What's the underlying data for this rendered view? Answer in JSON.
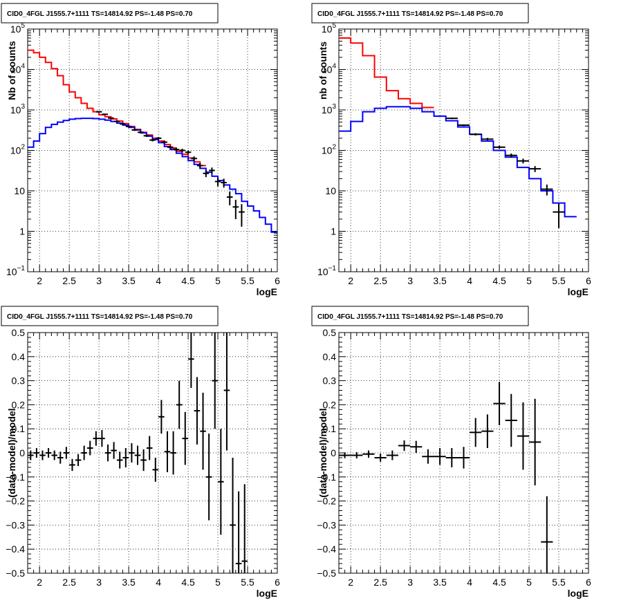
{
  "chart_data": [
    {
      "type": "line",
      "title": "CID0_4FGL J1555.7+1111 TS=14814.92 PS=-1.48 PS=0.70",
      "xlabel": "logE",
      "ylabel": "Nb of counts",
      "xlim": [
        1.8,
        6.0
      ],
      "ylim": [
        0.1,
        100000
      ],
      "yscale": "log",
      "grid": true,
      "xticks": [
        "2",
        "2.5",
        "3",
        "3.5",
        "4",
        "4.5",
        "5",
        "5.5",
        "6"
      ],
      "yticks": [
        {
          "v": 0.1,
          "label": "10",
          "sup": "−1"
        },
        {
          "v": 1,
          "label": "1",
          "sup": ""
        },
        {
          "v": 10,
          "label": "10",
          "sup": ""
        },
        {
          "v": 100,
          "label": "10",
          "sup": "2"
        },
        {
          "v": 1000,
          "label": "10",
          "sup": "3"
        },
        {
          "v": 10000,
          "label": "10",
          "sup": "4"
        },
        {
          "v": 100000,
          "label": "10",
          "sup": "5"
        }
      ],
      "bin_edges": [
        1.8,
        1.9,
        2.0,
        2.1,
        2.2,
        2.3,
        2.4,
        2.5,
        2.6,
        2.7,
        2.8,
        2.9,
        3.0,
        3.1,
        3.2,
        3.3,
        3.4,
        3.5,
        3.6,
        3.7,
        3.8,
        3.9,
        4.0,
        4.1,
        4.2,
        4.3,
        4.4,
        4.5,
        4.6,
        4.7,
        4.8,
        4.9,
        5.0,
        5.1,
        5.2,
        5.3,
        5.4,
        5.5,
        5.6,
        5.7,
        5.8,
        5.9,
        6.0
      ],
      "series": [
        {
          "name": "",
          "color": "#ff0000",
          "kind": "step",
          "values": [
            30000,
            26000,
            20000,
            15000,
            10500,
            7000,
            4200,
            2800,
            2000,
            1450,
            1100,
            900,
            760,
            680,
            600,
            530,
            460,
            390,
            330,
            280,
            240,
            200,
            170,
            140,
            115,
            95,
            80,
            65,
            52,
            42
          ]
        },
        {
          "name": "",
          "color": "#0000ff",
          "kind": "step",
          "values": [
            120,
            170,
            260,
            370,
            440,
            500,
            550,
            590,
            610,
            620,
            620,
            610,
            590,
            560,
            520,
            470,
            420,
            370,
            320,
            270,
            225,
            185,
            155,
            125,
            105,
            85,
            70,
            56,
            45,
            36,
            29,
            23,
            18,
            14,
            11,
            8.5,
            5.5,
            4.2,
            3.2,
            2.2,
            1.5,
            0.95
          ]
        },
        {
          "name": "data",
          "color": "#000000",
          "kind": "errorbar",
          "points": [
            {
              "x": 3.0,
              "y": 900,
              "ey": 30
            },
            {
              "x": 3.1,
              "y": 780,
              "ey": 28
            },
            {
              "x": 3.2,
              "y": 630,
              "ey": 25
            },
            {
              "x": 3.3,
              "y": 520,
              "ey": 23
            },
            {
              "x": 3.4,
              "y": 450,
              "ey": 21
            },
            {
              "x": 3.5,
              "y": 390,
              "ey": 20
            },
            {
              "x": 3.6,
              "y": 320,
              "ey": 18
            },
            {
              "x": 3.7,
              "y": 280,
              "ey": 17
            },
            {
              "x": 3.8,
              "y": 230,
              "ey": 15
            },
            {
              "x": 3.9,
              "y": 180,
              "ey": 13
            },
            {
              "x": 4.0,
              "y": 200,
              "ey": 14
            },
            {
              "x": 4.1,
              "y": 160,
              "ey": 13
            },
            {
              "x": 4.2,
              "y": 120,
              "ey": 11
            },
            {
              "x": 4.3,
              "y": 105,
              "ey": 10
            },
            {
              "x": 4.4,
              "y": 100,
              "ey": 10
            },
            {
              "x": 4.5,
              "y": 90,
              "ey": 9.5
            },
            {
              "x": 4.6,
              "y": 63,
              "ey": 8
            },
            {
              "x": 4.7,
              "y": 42,
              "ey": 6.5
            },
            {
              "x": 4.8,
              "y": 27,
              "ey": 5.2
            },
            {
              "x": 4.9,
              "y": 32,
              "ey": 5.7
            },
            {
              "x": 5.0,
              "y": 17,
              "ey": 4.1
            },
            {
              "x": 5.1,
              "y": 16,
              "ey": 4
            },
            {
              "x": 5.2,
              "y": 7,
              "ey": 2.6
            },
            {
              "x": 5.3,
              "y": 4,
              "ey": 2
            },
            {
              "x": 5.4,
              "y": 3,
              "ey": 1.7
            }
          ]
        }
      ]
    },
    {
      "type": "line",
      "title": "CID0_4FGL J1555.7+1111 TS=14814.92 PS=-1.48 PS=0.70",
      "xlabel": "logE",
      "ylabel": "nb of counts",
      "xlim": [
        1.8,
        6.0
      ],
      "ylim": [
        0.1,
        100000
      ],
      "yscale": "log",
      "grid": true,
      "xticks": [
        "2",
        "2.5",
        "3",
        "3.5",
        "4",
        "4.5",
        "5",
        "5.5",
        "6"
      ],
      "yticks": [
        {
          "v": 0.1,
          "label": "10",
          "sup": "−1"
        },
        {
          "v": 1,
          "label": "1",
          "sup": ""
        },
        {
          "v": 10,
          "label": "10",
          "sup": ""
        },
        {
          "v": 100,
          "label": "10",
          "sup": "2"
        },
        {
          "v": 1000,
          "label": "10",
          "sup": "3"
        },
        {
          "v": 10000,
          "label": "10",
          "sup": "4"
        },
        {
          "v": 100000,
          "label": "10",
          "sup": "5"
        }
      ],
      "bin_edges": [
        1.8,
        2.0,
        2.2,
        2.4,
        2.6,
        2.8,
        3.0,
        3.2,
        3.4,
        3.6,
        3.8,
        4.0,
        4.2,
        4.4,
        4.6,
        4.8,
        5.0,
        5.2,
        5.4,
        5.6,
        5.8,
        6.0
      ],
      "series": [
        {
          "name": "",
          "color": "#ff0000",
          "kind": "step",
          "values": [
            60000,
            45000,
            22000,
            6500,
            3000,
            1900,
            1450,
            1150
          ]
        },
        {
          "name": "",
          "color": "#0000ff",
          "kind": "step",
          "values": [
            300,
            520,
            900,
            1100,
            1200,
            1200,
            1100,
            900,
            700,
            540,
            380,
            250,
            170,
            100,
            68,
            38,
            20,
            10,
            5,
            2.3
          ]
        },
        {
          "name": "data",
          "color": "#000000",
          "kind": "errorbar",
          "points": [
            {
              "x": 3.7,
              "y": 620,
              "ey": 25
            },
            {
              "x": 3.9,
              "y": 420,
              "ey": 20
            },
            {
              "x": 4.1,
              "y": 250,
              "ey": 16
            },
            {
              "x": 4.3,
              "y": 190,
              "ey": 14
            },
            {
              "x": 4.5,
              "y": 120,
              "ey": 11
            },
            {
              "x": 4.7,
              "y": 75,
              "ey": 8.7
            },
            {
              "x": 4.9,
              "y": 55,
              "ey": 7.4
            },
            {
              "x": 5.1,
              "y": 35,
              "ey": 5.9
            },
            {
              "x": 5.3,
              "y": 11,
              "ey": 3.3
            },
            {
              "x": 5.5,
              "y": 3,
              "ey": 1.8
            }
          ]
        }
      ]
    },
    {
      "type": "scatter",
      "title": "CID0_4FGL J1555.7+1111 TS=14814.92 PS=-1.48 PS=0.70",
      "xlabel": "logE",
      "ylabel": "(data-model)/model",
      "xlim": [
        1.8,
        6.0
      ],
      "ylim": [
        -0.5,
        0.5
      ],
      "yscale": "linear",
      "grid": true,
      "xticks": [
        "2",
        "2.5",
        "3",
        "3.5",
        "4",
        "4.5",
        "5",
        "5.5",
        "6"
      ],
      "yticks": [
        {
          "v": -0.5,
          "label": "−0.5",
          "sup": ""
        },
        {
          "v": -0.4,
          "label": "−0.4",
          "sup": ""
        },
        {
          "v": -0.3,
          "label": "−0.3",
          "sup": ""
        },
        {
          "v": -0.2,
          "label": "−0.2",
          "sup": ""
        },
        {
          "v": -0.1,
          "label": "−0.1",
          "sup": ""
        },
        {
          "v": 0,
          "label": "0",
          "sup": ""
        },
        {
          "v": 0.1,
          "label": "0.1",
          "sup": ""
        },
        {
          "v": 0.2,
          "label": "0.2",
          "sup": ""
        },
        {
          "v": 0.3,
          "label": "0.3",
          "sup": ""
        },
        {
          "v": 0.4,
          "label": "0.4",
          "sup": ""
        },
        {
          "v": 0.5,
          "label": "0.5",
          "sup": ""
        }
      ],
      "bin_width": 0.1,
      "series": [
        {
          "name": "data",
          "color": "#000000",
          "kind": "errorbar",
          "points": [
            {
              "x": 1.85,
              "y": -0.01,
              "ey": 0.02
            },
            {
              "x": 1.95,
              "y": 0.0,
              "ey": 0.02
            },
            {
              "x": 2.05,
              "y": -0.01,
              "ey": 0.02
            },
            {
              "x": 2.15,
              "y": 0.0,
              "ey": 0.02
            },
            {
              "x": 2.25,
              "y": -0.01,
              "ey": 0.02
            },
            {
              "x": 2.35,
              "y": -0.02,
              "ey": 0.025
            },
            {
              "x": 2.45,
              "y": 0.0,
              "ey": 0.025
            },
            {
              "x": 2.55,
              "y": -0.05,
              "ey": 0.025
            },
            {
              "x": 2.65,
              "y": -0.03,
              "ey": 0.025
            },
            {
              "x": 2.75,
              "y": 0.0,
              "ey": 0.03
            },
            {
              "x": 2.85,
              "y": 0.02,
              "ey": 0.03
            },
            {
              "x": 2.95,
              "y": 0.06,
              "ey": 0.03
            },
            {
              "x": 3.05,
              "y": 0.06,
              "ey": 0.035
            },
            {
              "x": 3.15,
              "y": 0.0,
              "ey": 0.035
            },
            {
              "x": 3.25,
              "y": 0.01,
              "ey": 0.035
            },
            {
              "x": 3.35,
              "y": -0.03,
              "ey": 0.035
            },
            {
              "x": 3.45,
              "y": -0.02,
              "ey": 0.04
            },
            {
              "x": 3.55,
              "y": 0.0,
              "ey": 0.04
            },
            {
              "x": 3.65,
              "y": -0.01,
              "ey": 0.04
            },
            {
              "x": 3.75,
              "y": -0.03,
              "ey": 0.045
            },
            {
              "x": 3.85,
              "y": 0.02,
              "ey": 0.05
            },
            {
              "x": 3.95,
              "y": -0.07,
              "ey": 0.05
            },
            {
              "x": 4.05,
              "y": 0.15,
              "ey": 0.07
            },
            {
              "x": 4.15,
              "y": 0.005,
              "ey": 0.085
            },
            {
              "x": 4.25,
              "y": 0.0,
              "ey": 0.09
            },
            {
              "x": 4.35,
              "y": 0.2,
              "ey": 0.1
            },
            {
              "x": 4.45,
              "y": 0.06,
              "ey": 0.11
            },
            {
              "x": 4.55,
              "y": 0.39,
              "ey": 0.12
            },
            {
              "x": 4.65,
              "y": 0.175,
              "ey": 0.14
            },
            {
              "x": 4.75,
              "y": 0.09,
              "ey": 0.16
            },
            {
              "x": 4.85,
              "y": -0.1,
              "ey": 0.18
            },
            {
              "x": 4.95,
              "y": 0.3,
              "ey": 0.2
            },
            {
              "x": 5.05,
              "y": -0.12,
              "ey": 0.22
            },
            {
              "x": 5.15,
              "y": 0.26,
              "ey": 0.25
            },
            {
              "x": 5.25,
              "y": -0.3,
              "ey": 0.28
            },
            {
              "x": 5.35,
              "y": -0.46,
              "ey": 0.3
            },
            {
              "x": 5.45,
              "y": -0.45,
              "ey": 0.32
            }
          ]
        }
      ]
    },
    {
      "type": "scatter",
      "title": "CID0_4FGL J1555.7+1111 TS=14814.92 PS=-1.48 PS=0.70",
      "xlabel": "logE",
      "ylabel": "(data-model)/model",
      "xlim": [
        1.8,
        6.0
      ],
      "ylim": [
        -0.5,
        0.5
      ],
      "yscale": "linear",
      "grid": true,
      "xticks": [
        "2",
        "2.5",
        "3",
        "3.5",
        "4",
        "4.5",
        "5",
        "5.5",
        "6"
      ],
      "yticks": [
        {
          "v": -0.5,
          "label": "−0.5",
          "sup": ""
        },
        {
          "v": -0.4,
          "label": "−0.4",
          "sup": ""
        },
        {
          "v": -0.3,
          "label": "−0.3",
          "sup": ""
        },
        {
          "v": -0.2,
          "label": "−0.2",
          "sup": ""
        },
        {
          "v": -0.1,
          "label": "−0.1",
          "sup": ""
        },
        {
          "v": 0,
          "label": "0",
          "sup": ""
        },
        {
          "v": 0.1,
          "label": "0.1",
          "sup": ""
        },
        {
          "v": 0.2,
          "label": "0.2",
          "sup": ""
        },
        {
          "v": 0.3,
          "label": "0.3",
          "sup": ""
        },
        {
          "v": 0.4,
          "label": "0.4",
          "sup": ""
        },
        {
          "v": 0.5,
          "label": "0.5",
          "sup": ""
        }
      ],
      "bin_width": 0.2,
      "series": [
        {
          "name": "data",
          "color": "#000000",
          "kind": "errorbar",
          "points": [
            {
              "x": 1.9,
              "y": -0.01,
              "ey": 0.012
            },
            {
              "x": 2.1,
              "y": -0.01,
              "ey": 0.013
            },
            {
              "x": 2.3,
              "y": -0.005,
              "ey": 0.015
            },
            {
              "x": 2.5,
              "y": -0.02,
              "ey": 0.017
            },
            {
              "x": 2.7,
              "y": -0.01,
              "ey": 0.02
            },
            {
              "x": 2.9,
              "y": 0.03,
              "ey": 0.022
            },
            {
              "x": 3.1,
              "y": 0.025,
              "ey": 0.025
            },
            {
              "x": 3.3,
              "y": -0.015,
              "ey": 0.03
            },
            {
              "x": 3.5,
              "y": -0.015,
              "ey": 0.035
            },
            {
              "x": 3.7,
              "y": -0.02,
              "ey": 0.04
            },
            {
              "x": 3.9,
              "y": -0.02,
              "ey": 0.045
            },
            {
              "x": 4.1,
              "y": 0.085,
              "ey": 0.06
            },
            {
              "x": 4.3,
              "y": 0.09,
              "ey": 0.07
            },
            {
              "x": 4.5,
              "y": 0.205,
              "ey": 0.09
            },
            {
              "x": 4.7,
              "y": 0.135,
              "ey": 0.11
            },
            {
              "x": 4.9,
              "y": 0.07,
              "ey": 0.14
            },
            {
              "x": 5.1,
              "y": 0.045,
              "ey": 0.18
            },
            {
              "x": 5.3,
              "y": -0.37,
              "ey": 0.19
            }
          ]
        }
      ]
    }
  ]
}
